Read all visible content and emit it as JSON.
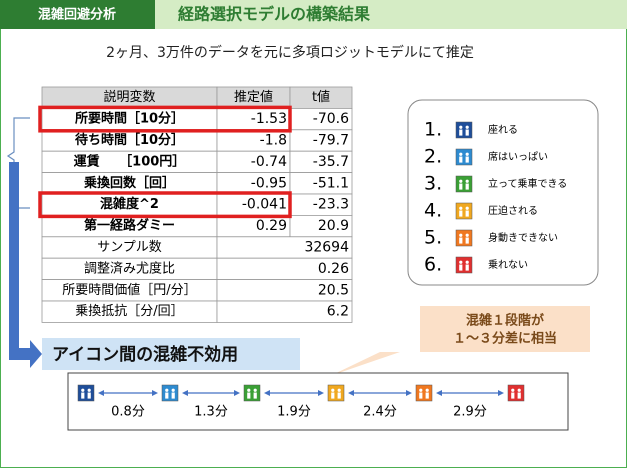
{
  "header": {
    "tag": "混雑回避分析",
    "title": "経路選択モデルの構築結果"
  },
  "subtitle": "2ヶ月、3万件のデータを元に多項ロジットモデルにて推定",
  "table": {
    "header": [
      "説明変数",
      "推定値",
      "t値"
    ],
    "rows": [
      [
        "所要時間［10分］",
        "-1.53",
        "-70.6"
      ],
      [
        "待ち時間［10分］",
        "-1.8",
        "-79.7"
      ],
      [
        "運賃　　［100円］",
        "-0.74",
        "-35.7"
      ],
      [
        "乗換回数［回］",
        "-0.95",
        "-51.1"
      ],
      [
        "混雑度^2",
        "-0.041",
        "-23.3"
      ],
      [
        "第一経路ダミー",
        "0.29",
        "20.9"
      ]
    ],
    "stats": [
      [
        "サンプル数",
        "32694"
      ],
      [
        "調整済み尤度比",
        "0.26"
      ],
      [
        "所要時間価値［円/分］",
        "20.5"
      ],
      [
        "乗換抵抗［分/回］",
        "6.2"
      ]
    ]
  },
  "legend": [
    {
      "number": "1.",
      "label": "座れる",
      "color": "#1f4e9a"
    },
    {
      "number": "2.",
      "label": "席はいっぱい",
      "color": "#2e8bd0"
    },
    {
      "number": "3.",
      "label": "立って乗車できる",
      "color": "#3aa035"
    },
    {
      "number": "4.",
      "label": "圧迫される",
      "color": "#f0a820"
    },
    {
      "number": "5.",
      "label": "身動きできない",
      "color": "#f07820"
    },
    {
      "number": "6.",
      "label": "乗れない",
      "color": "#e03030"
    }
  ],
  "callout": [
    "混雑１段階が",
    "１～３分差に相当"
  ],
  "banner": "アイコン間の混雑不効用",
  "gaps": [
    "0.8分",
    "1.3分",
    "1.9分",
    "2.4分",
    "2.9分"
  ]
}
